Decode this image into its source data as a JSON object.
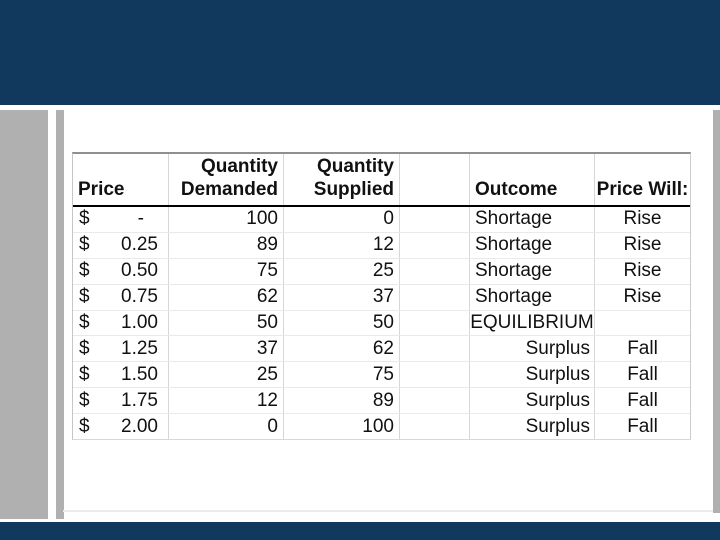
{
  "colors": {
    "navy_band": "#11395d",
    "gray_bar": "#b0b0b0",
    "header_rule": "#000000",
    "grid_line": "#d6d6d6"
  },
  "table": {
    "headers": {
      "price": "Price",
      "demanded_l1": "Quantity",
      "demanded_l2": "Demanded",
      "supplied_l1": "Quantity",
      "supplied_l2": "Supplied",
      "spacer": "",
      "outcome": "Outcome",
      "price_will": "Price Will:"
    },
    "rows": [
      {
        "cur": "$",
        "price": "-",
        "demanded": "100",
        "supplied": "0",
        "outcome": "Shortage",
        "will": "Rise"
      },
      {
        "cur": "$",
        "price": "0.25",
        "demanded": "89",
        "supplied": "12",
        "outcome": "Shortage",
        "will": "Rise"
      },
      {
        "cur": "$",
        "price": "0.50",
        "demanded": "75",
        "supplied": "25",
        "outcome": "Shortage",
        "will": "Rise"
      },
      {
        "cur": "$",
        "price": "0.75",
        "demanded": "62",
        "supplied": "37",
        "outcome": "Shortage",
        "will": "Rise"
      },
      {
        "cur": "$",
        "price": "1.00",
        "demanded": "50",
        "supplied": "50",
        "outcome": "EQUILIBRIUM",
        "will": ""
      },
      {
        "cur": "$",
        "price": "1.25",
        "demanded": "37",
        "supplied": "62",
        "outcome": "Surplus",
        "will": "Fall"
      },
      {
        "cur": "$",
        "price": "1.50",
        "demanded": "25",
        "supplied": "75",
        "outcome": "Surplus",
        "will": "Fall"
      },
      {
        "cur": "$",
        "price": "1.75",
        "demanded": "12",
        "supplied": "89",
        "outcome": "Surplus",
        "will": "Fall"
      },
      {
        "cur": "$",
        "price": "2.00",
        "demanded": "0",
        "supplied": "100",
        "outcome": "Surplus",
        "will": "Fall"
      }
    ]
  }
}
